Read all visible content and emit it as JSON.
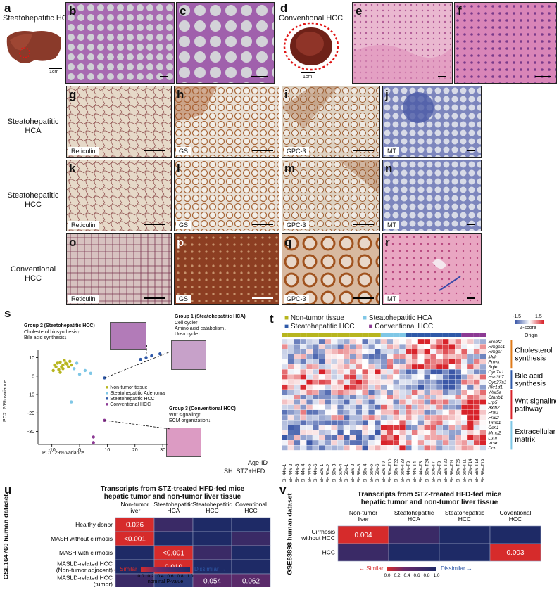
{
  "panels": {
    "a": "a",
    "b": "b",
    "c": "c",
    "d": "d",
    "e": "e",
    "f": "f",
    "g": "g",
    "h": "h",
    "i": "i",
    "j": "j",
    "k": "k",
    "l": "l",
    "m": "m",
    "n": "n",
    "o": "o",
    "p": "p",
    "q": "q",
    "r": "r",
    "s": "s",
    "t": "t",
    "u": "u",
    "v": "v"
  },
  "top": {
    "a_title": "Steatohepatitic HCC",
    "d_title": "Conventional HCC",
    "scale_1cm": "1cm"
  },
  "rows": {
    "row1": [
      "Steatohepatitic",
      "HCA"
    ],
    "row2": [
      "Steatohepatitic",
      "HCC"
    ],
    "row3": [
      "Conventional",
      "HCC"
    ]
  },
  "stains": {
    "reticulin": "Reticulin",
    "gs": "GS",
    "gpc3": "GPC-3",
    "mt": "MT"
  },
  "colors": {
    "he_pink": "#d88fb8",
    "he_purple": "#9a5ca6",
    "ret_bg": "#e7d9c7",
    "ihc_brown": "#8a4a22",
    "mt_blue": "#6f79b6",
    "nontumor": "#b7b51e",
    "sh_hca": "#7fc7e6",
    "sh_hcc": "#2f59a8",
    "conv_hcc": "#8c3a94"
  },
  "s": {
    "g2_title": "Group 2 (Steatohepatitic HCC)",
    "g2_l1": "Cholesterol biosynthesis↑",
    "g2_l2": "Bile acid synthesis↓",
    "g1_title": "Group 1 (Steatohepatitic HCA)",
    "g1_l1": "Cell cycle↑",
    "g1_l2": "Amino acid catabolism↓",
    "g1_l3": "Urea cycle↓",
    "g3_title": "Group 3 (Conventional HCC)",
    "g3_l1": "Wnt signaling↑",
    "g3_l2": "ECM organization↓",
    "legend": [
      "Non-tumor tissue",
      "Steatohepatitic Adenoma",
      "Steatohepatitic HCC",
      "Conventional HCC"
    ],
    "xlabel": "PC1: 29% variance",
    "ylabel": "PC2: 26% variance",
    "xticks": [
      "-10",
      "0",
      "10",
      "20",
      "30"
    ],
    "yticks": [
      "10",
      "0",
      "-10",
      "-20",
      "-30"
    ]
  },
  "t": {
    "legend": [
      "Non-tumor tissue",
      "Steatohepatitic HCA",
      "Steatohepatitic HCC",
      "Conventional HCC"
    ],
    "zmin": "-1.5",
    "zmax": "1.5",
    "ztitle": "Z-score",
    "origin": "Origin",
    "genes": [
      "Srebf2",
      "Hmgcs1",
      "Hmgcr",
      "Mvk",
      "Pmvk",
      "Sqle",
      "Cyp7a1",
      "Hsd3b7",
      "Cyp27a1",
      "Akr1d1",
      "Wnt5a",
      "Ctnnb1",
      "Lrp5",
      "Axin2",
      "Frat1",
      "Frat2",
      "Timp1",
      "Ccn1",
      "Mmp2",
      "Lum",
      "Vcan",
      "Dcn"
    ],
    "groups": [
      "Cholesterol synthesis",
      "Bile acid synthesis",
      "Wnt signaling pathway",
      "Extracellular matrix"
    ],
    "group_lines": [
      [
        "Cholesterol",
        "synthesis"
      ],
      [
        "Bile acid",
        "synthesis"
      ],
      [
        "Wnt signaling",
        "pathway"
      ],
      [
        "Extracellular",
        "matrix"
      ]
    ],
    "age_id": "Age-ID",
    "sh_note": "SH: STZ+HFD",
    "samples": [
      "SH 44w-1",
      "SH 44w-2",
      "SH 44w-3",
      "SH 44w-4",
      "SH 44w-5",
      "SH 44w-6",
      "SH 50w-1",
      "SH 50w-2",
      "SH 50w-3",
      "SH 50w-4",
      "SH 56w-1",
      "SH 56w-2",
      "SH 56w-3",
      "SH 56w-4",
      "SH 56w-5",
      "SH 56w-6",
      "SH 50w-T9",
      "SH 50w-T10",
      "SH 56w-T22",
      "SH 56w-T23",
      "SH 44w-T3",
      "SH 44w-T4",
      "SH 44w-T5",
      "SH 50w-T24",
      "SH 50w-T7",
      "SH 50w-T8",
      "SH 56w-T20",
      "SH 56w-T21",
      "SH 50w-T25",
      "SH 56w-T11",
      "SH 50w-T14",
      "SH 56w-T18",
      "SH 56w-T19"
    ]
  },
  "u": {
    "title1": "Transcripts from STZ-treated HFD-fed mice",
    "title2": "hepatic tumor and non-tumor liver tissue",
    "side": "GSE164760 human dataset",
    "cols": [
      [
        "Non-tumor",
        "liver"
      ],
      [
        "Steatohepatitic",
        "HCA"
      ],
      [
        "Steatohepatitic",
        "HCC"
      ],
      [
        "Coventional",
        "HCC"
      ]
    ],
    "rows": [
      "Healthy donor",
      "MASH without cirrhosis",
      "MASH with cirrhosis",
      "MASLD-related HCC (Non-tumor adjacent)",
      "MASLD-related HCC (tumor)"
    ],
    "rows_lines": [
      [
        "Healthy donor"
      ],
      [
        "MASH without cirrhosis"
      ],
      [
        "MASH with cirrhosis"
      ],
      [
        "MASLD-related HCC",
        "(Non-tumor adjacent)"
      ],
      [
        "MASLD-related HCC",
        "(tumor)"
      ]
    ],
    "cells": [
      [
        "0.026",
        "",
        "",
        ""
      ],
      [
        "<0.001",
        "",
        "",
        ""
      ],
      [
        "",
        "<0.001",
        "",
        ""
      ],
      [
        "",
        "0.010",
        "",
        ""
      ],
      [
        "",
        "",
        "0.054",
        "0.062"
      ]
    ],
    "similar": "Similar",
    "dissimilar": "Dissimilar",
    "scale": [
      "0.0",
      "0.2",
      "0.4",
      "0.6",
      "0.8",
      "1.0"
    ],
    "scale_label": "nominal P-value"
  },
  "v": {
    "title1": "Transcripts from STZ-treated HFD-fed mice",
    "title2": "hepatic tumor and non-tumor liver tissue",
    "side": "GSE63898 human dataset",
    "cols": [
      [
        "Non-tumor",
        "liver"
      ],
      [
        "Steatohepatitic",
        "HCA"
      ],
      [
        "Steatohepatitic",
        "HCC"
      ],
      [
        "Coventional",
        "HCC"
      ]
    ],
    "rows_lines": [
      [
        "Cirrhosis",
        "without HCC"
      ],
      [
        "HCC"
      ]
    ],
    "cells": [
      [
        "0.004",
        "",
        "",
        ""
      ],
      [
        "",
        "",
        "",
        "0.003"
      ]
    ],
    "similar": "Similar",
    "dissimilar": "Dissimilar",
    "scale": [
      "0.0",
      "0.2",
      "0.4",
      "0.6",
      "0.8",
      "1.0"
    ],
    "scale_label": "nominal P-value"
  }
}
